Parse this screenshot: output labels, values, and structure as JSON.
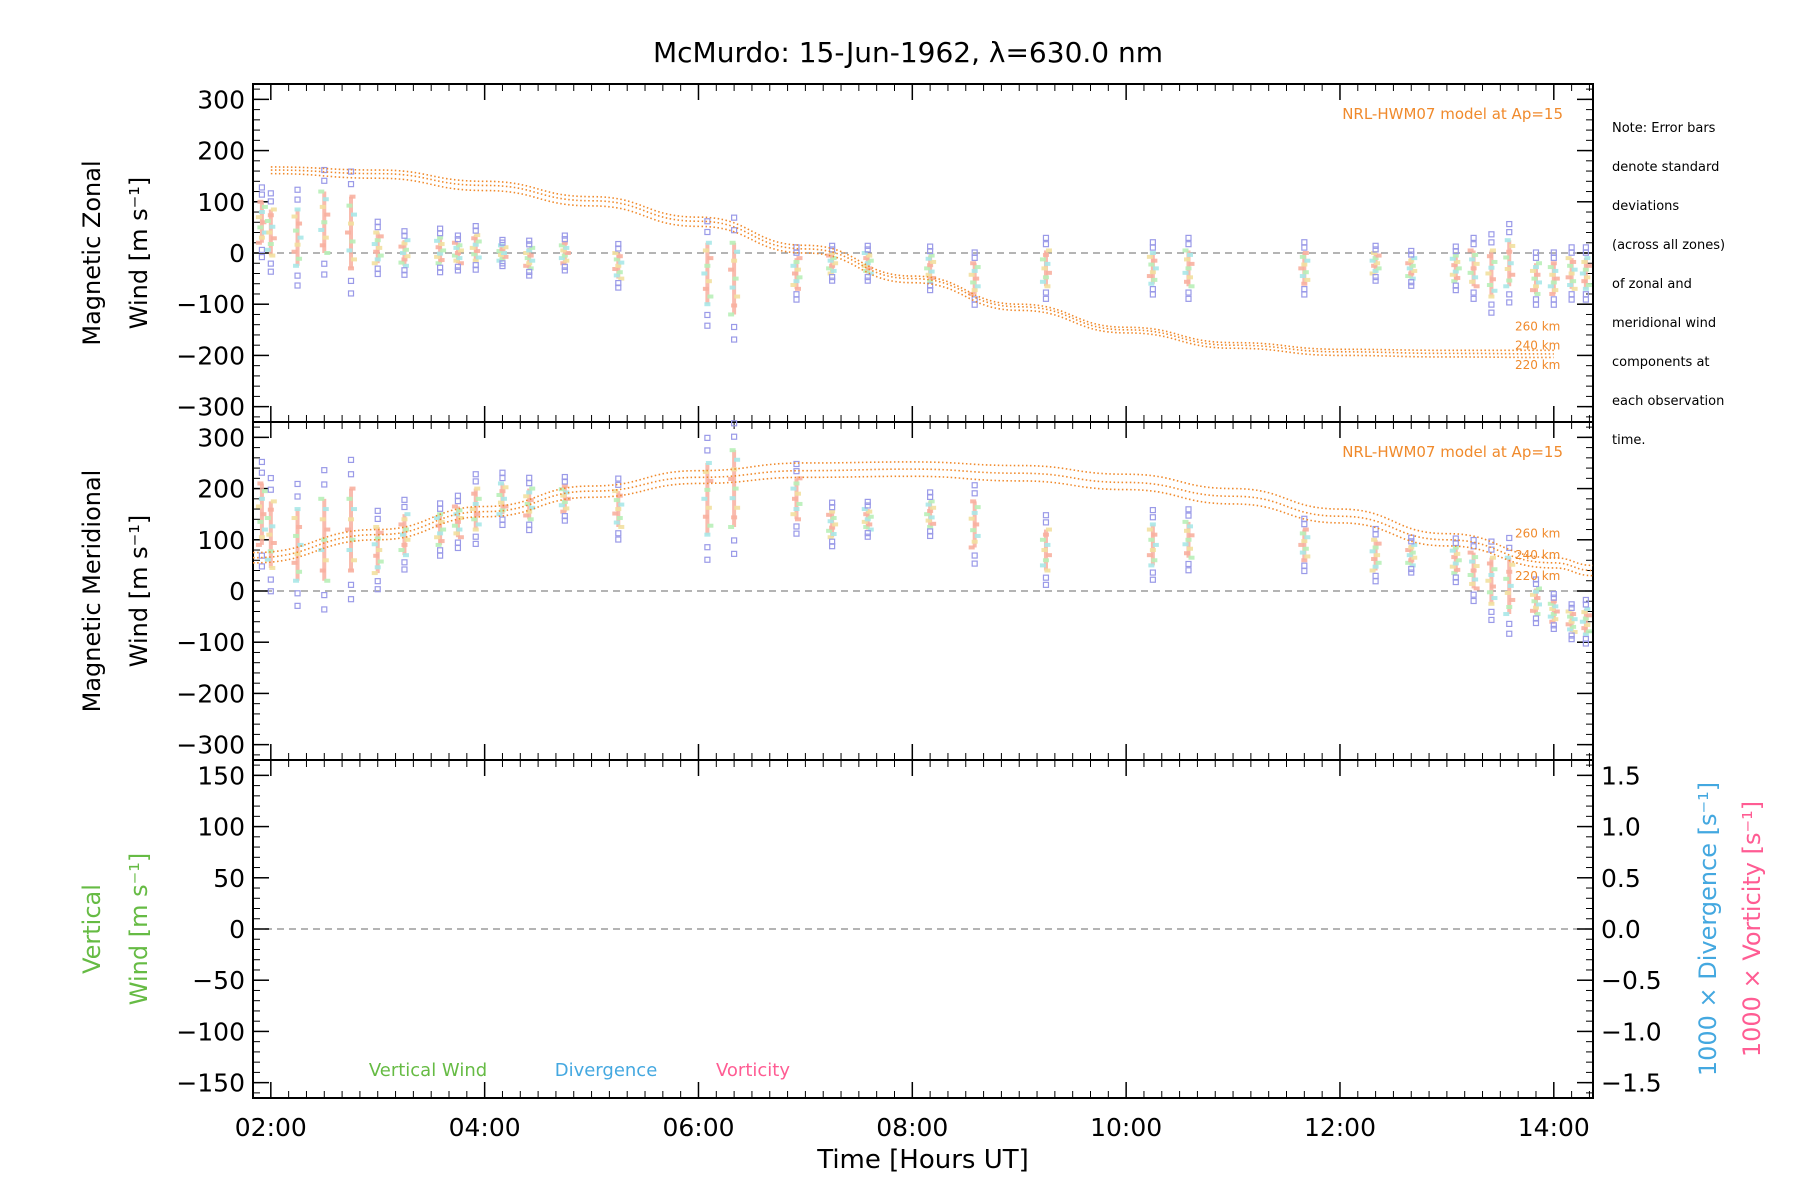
{
  "chart_data": [
    {
      "type": "scatter",
      "title": "McMurdo: 15-Jun-1962, λ=630.0 nm",
      "ylabel_line1": "Magnetic Zonal",
      "ylabel_line2": "Wind [m s⁻¹]",
      "ylim": [
        -330,
        330
      ],
      "yticks": [
        300,
        200,
        100,
        0,
        -100,
        -200,
        -300
      ],
      "xlim": [
        "01:50",
        "14:22"
      ],
      "xticks": [
        "02:00",
        "04:00",
        "06:00",
        "08:00",
        "10:00",
        "12:00",
        "14:00"
      ],
      "zero_line": 0,
      "model_label": "NRL-HWM07 model at Ap=15",
      "model_curves": [
        {
          "name": "260 km",
          "x": [
            "02:00",
            "03:00",
            "04:00",
            "05:00",
            "06:00",
            "07:00",
            "08:00",
            "09:00",
            "10:00",
            "11:00",
            "12:00",
            "13:00",
            "14:00"
          ],
          "y": [
            168,
            162,
            140,
            110,
            70,
            15,
            -45,
            -100,
            -145,
            -175,
            -188,
            -190,
            -190
          ]
        },
        {
          "name": "240 km",
          "x": [
            "02:00",
            "03:00",
            "04:00",
            "05:00",
            "06:00",
            "07:00",
            "08:00",
            "09:00",
            "10:00",
            "11:00",
            "12:00",
            "13:00",
            "14:00"
          ],
          "y": [
            162,
            155,
            132,
            102,
            62,
            8,
            -50,
            -105,
            -150,
            -180,
            -193,
            -196,
            -197
          ]
        },
        {
          "name": "220 km",
          "x": [
            "02:00",
            "03:00",
            "04:00",
            "05:00",
            "06:00",
            "07:00",
            "08:00",
            "09:00",
            "10:00",
            "11:00",
            "12:00",
            "13:00",
            "14:00"
          ],
          "y": [
            155,
            146,
            122,
            92,
            52,
            0,
            -58,
            -112,
            -156,
            -186,
            -200,
            -203,
            -204
          ]
        }
      ],
      "observations": [
        {
          "t": "01:55",
          "center": 60,
          "spread": 80
        },
        {
          "t": "02:00",
          "center": 40,
          "spread": 90
        },
        {
          "t": "02:15",
          "center": 30,
          "spread": 110
        },
        {
          "t": "02:30",
          "center": 60,
          "spread": 120
        },
        {
          "t": "02:45",
          "center": 40,
          "spread": 140
        },
        {
          "t": "03:00",
          "center": 10,
          "spread": 60
        },
        {
          "t": "03:15",
          "center": 0,
          "spread": 50
        },
        {
          "t": "03:35",
          "center": 5,
          "spread": 50
        },
        {
          "t": "03:45",
          "center": 0,
          "spread": 40
        },
        {
          "t": "03:55",
          "center": 10,
          "spread": 50
        },
        {
          "t": "04:10",
          "center": 0,
          "spread": 30
        },
        {
          "t": "04:25",
          "center": -10,
          "spread": 40
        },
        {
          "t": "04:45",
          "center": 0,
          "spread": 40
        },
        {
          "t": "05:15",
          "center": -25,
          "spread": 50
        },
        {
          "t": "06:05",
          "center": -40,
          "spread": 120
        },
        {
          "t": "06:20",
          "center": -50,
          "spread": 140
        },
        {
          "t": "06:55",
          "center": -40,
          "spread": 60
        },
        {
          "t": "07:15",
          "center": -20,
          "spread": 40
        },
        {
          "t": "07:35",
          "center": -20,
          "spread": 40
        },
        {
          "t": "08:10",
          "center": -30,
          "spread": 50
        },
        {
          "t": "08:35",
          "center": -50,
          "spread": 60
        },
        {
          "t": "09:15",
          "center": -30,
          "spread": 70
        },
        {
          "t": "10:15",
          "center": -30,
          "spread": 60
        },
        {
          "t": "10:35",
          "center": -30,
          "spread": 70
        },
        {
          "t": "11:40",
          "center": -30,
          "spread": 60
        },
        {
          "t": "12:20",
          "center": -20,
          "spread": 40
        },
        {
          "t": "12:40",
          "center": -30,
          "spread": 40
        },
        {
          "t": "13:05",
          "center": -30,
          "spread": 50
        },
        {
          "t": "13:15",
          "center": -30,
          "spread": 70
        },
        {
          "t": "13:25",
          "center": -40,
          "spread": 90
        },
        {
          "t": "13:35",
          "center": -20,
          "spread": 90
        },
        {
          "t": "13:50",
          "center": -50,
          "spread": 60
        },
        {
          "t": "14:00",
          "center": -50,
          "spread": 60
        },
        {
          "t": "14:10",
          "center": -40,
          "spread": 60
        },
        {
          "t": "14:18",
          "center": -40,
          "spread": 60
        }
      ]
    },
    {
      "type": "scatter",
      "ylabel_line1": "Magnetic Meridional",
      "ylabel_line2": "Wind [m s⁻¹]",
      "ylim": [
        -330,
        330
      ],
      "yticks": [
        300,
        200,
        100,
        0,
        -100,
        -200,
        -300
      ],
      "xlim": [
        "01:50",
        "14:22"
      ],
      "xticks": [
        "02:00",
        "04:00",
        "06:00",
        "08:00",
        "10:00",
        "12:00",
        "14:00"
      ],
      "zero_line": 0,
      "model_label": "NRL-HWM07 model at Ap=15",
      "model_curves": [
        {
          "name": "260 km",
          "x": [
            "01:50",
            "03:00",
            "04:00",
            "05:00",
            "06:00",
            "07:00",
            "08:00",
            "09:00",
            "10:00",
            "11:00",
            "12:00",
            "13:00",
            "14:00",
            "14:22"
          ],
          "y": [
            75,
            120,
            165,
            205,
            235,
            250,
            252,
            245,
            228,
            200,
            160,
            112,
            65,
            50
          ]
        },
        {
          "name": "240 km",
          "x": [
            "01:50",
            "03:00",
            "04:00",
            "05:00",
            "06:00",
            "07:00",
            "08:00",
            "09:00",
            "10:00",
            "11:00",
            "12:00",
            "13:00",
            "14:00",
            "14:22"
          ],
          "y": [
            65,
            110,
            155,
            195,
            222,
            235,
            238,
            230,
            212,
            185,
            146,
            100,
            55,
            40
          ]
        },
        {
          "name": "220 km",
          "x": [
            "01:50",
            "03:00",
            "04:00",
            "05:00",
            "06:00",
            "07:00",
            "08:00",
            "09:00",
            "10:00",
            "11:00",
            "12:00",
            "13:00",
            "14:00",
            "14:22"
          ],
          "y": [
            55,
            100,
            145,
            183,
            210,
            222,
            224,
            215,
            198,
            170,
            133,
            88,
            45,
            30
          ]
        }
      ],
      "observations": [
        {
          "t": "01:55",
          "center": 150,
          "spread": 120
        },
        {
          "t": "02:00",
          "center": 110,
          "spread": 130
        },
        {
          "t": "02:15",
          "center": 90,
          "spread": 140
        },
        {
          "t": "02:30",
          "center": 100,
          "spread": 160
        },
        {
          "t": "02:45",
          "center": 120,
          "spread": 160
        },
        {
          "t": "03:00",
          "center": 80,
          "spread": 90
        },
        {
          "t": "03:15",
          "center": 110,
          "spread": 80
        },
        {
          "t": "03:35",
          "center": 120,
          "spread": 60
        },
        {
          "t": "03:45",
          "center": 135,
          "spread": 60
        },
        {
          "t": "03:55",
          "center": 160,
          "spread": 80
        },
        {
          "t": "04:10",
          "center": 180,
          "spread": 60
        },
        {
          "t": "04:25",
          "center": 170,
          "spread": 60
        },
        {
          "t": "04:45",
          "center": 180,
          "spread": 50
        },
        {
          "t": "05:15",
          "center": 160,
          "spread": 70
        },
        {
          "t": "06:05",
          "center": 180,
          "spread": 140
        },
        {
          "t": "06:20",
          "center": 200,
          "spread": 150
        },
        {
          "t": "06:55",
          "center": 180,
          "spread": 80
        },
        {
          "t": "07:15",
          "center": 130,
          "spread": 50
        },
        {
          "t": "07:35",
          "center": 140,
          "spread": 40
        },
        {
          "t": "08:10",
          "center": 150,
          "spread": 50
        },
        {
          "t": "08:35",
          "center": 130,
          "spread": 90
        },
        {
          "t": "09:15",
          "center": 80,
          "spread": 80
        },
        {
          "t": "10:15",
          "center": 90,
          "spread": 80
        },
        {
          "t": "10:35",
          "center": 100,
          "spread": 70
        },
        {
          "t": "11:40",
          "center": 90,
          "spread": 60
        },
        {
          "t": "12:20",
          "center": 70,
          "spread": 60
        },
        {
          "t": "12:40",
          "center": 70,
          "spread": 40
        },
        {
          "t": "13:05",
          "center": 60,
          "spread": 50
        },
        {
          "t": "13:15",
          "center": 40,
          "spread": 70
        },
        {
          "t": "13:25",
          "center": 20,
          "spread": 90
        },
        {
          "t": "13:35",
          "center": 10,
          "spread": 110
        },
        {
          "t": "13:50",
          "center": -20,
          "spread": 50
        },
        {
          "t": "14:00",
          "center": -40,
          "spread": 40
        },
        {
          "t": "14:10",
          "center": -60,
          "spread": 40
        },
        {
          "t": "14:18",
          "center": -60,
          "spread": 50
        }
      ]
    },
    {
      "type": "line",
      "ylabel_line1": "Vertical",
      "ylabel_line2": "Wind [m s⁻¹]",
      "ylim": [
        -165,
        165
      ],
      "yticks": [
        150,
        100,
        50,
        0,
        -50,
        -100,
        -150
      ],
      "y2label_divergence": "1000 × Divergence [s⁻¹]",
      "y2label_vorticity": "1000 × Vorticity [s⁻¹]",
      "y2lim": [
        -1.65,
        1.65
      ],
      "y2ticks": [
        "1.5",
        "1.0",
        "0.5",
        "0.0",
        "−0.5",
        "−1.0",
        "−1.5"
      ],
      "y2tick_values": [
        1.5,
        1.0,
        0.5,
        0.0,
        -0.5,
        -1.0,
        -1.5
      ],
      "xlim": [
        "01:50",
        "14:22"
      ],
      "xticks": [
        "02:00",
        "04:00",
        "06:00",
        "08:00",
        "10:00",
        "12:00",
        "14:00"
      ],
      "xlabel": "Time [Hours UT]",
      "zero_line": 0,
      "legend": [
        {
          "name": "Vertical Wind",
          "color": "#66bb44"
        },
        {
          "name": "Divergence",
          "color": "#44a8e0"
        },
        {
          "name": "Vorticity",
          "color": "#ff5c93"
        }
      ]
    }
  ],
  "note": {
    "lines": [
      "Note: Error bars",
      "denote standard",
      "deviations",
      "(across all zones)",
      "of zonal and",
      "meridional wind",
      "components at",
      "each observation",
      "time."
    ]
  },
  "colors": {
    "model": "#f08a2c",
    "observation_warm": "#f8b0a0",
    "observation_yellow": "#f2e0a0",
    "observation_cyan": "#a8e8e8",
    "observation_green": "#b8f0b8",
    "error_marker": "#9a9ae8",
    "zero_line": "#888888",
    "vertical_wind": "#66bb44",
    "divergence": "#44a8e0",
    "vorticity": "#ff5c93"
  }
}
